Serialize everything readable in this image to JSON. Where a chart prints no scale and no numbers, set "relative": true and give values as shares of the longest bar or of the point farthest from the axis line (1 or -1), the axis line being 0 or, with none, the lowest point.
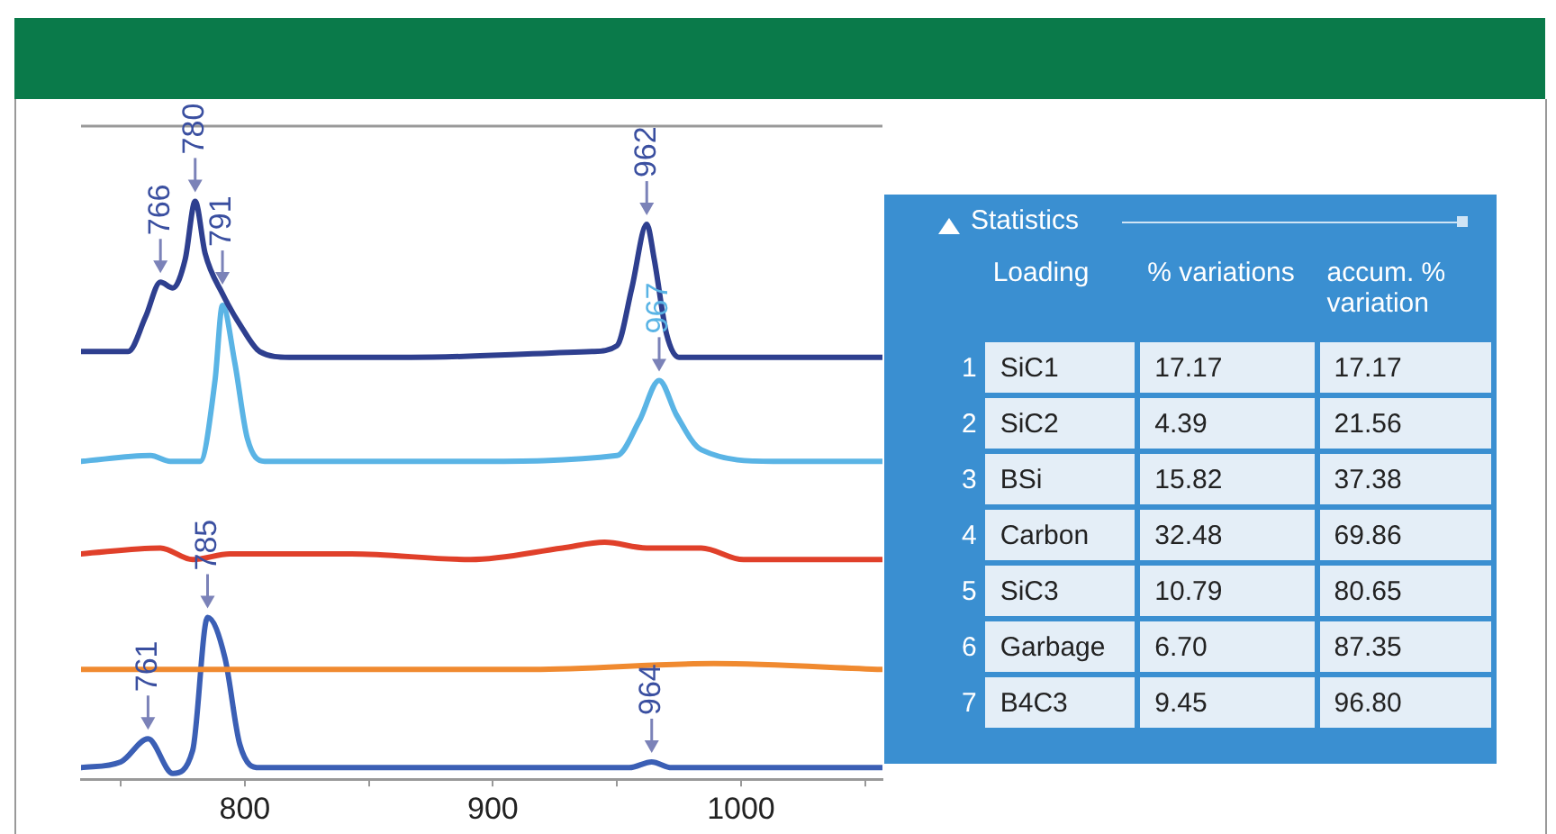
{
  "chart_data": [
    {
      "type": "line",
      "relative": true,
      "legend": false,
      "marker": "none",
      "line_style": "solid",
      "xlim": [
        734,
        1057
      ],
      "xticks": [
        {
          "value": 750,
          "label": null
        },
        800,
        {
          "value": 850,
          "label": null
        },
        900,
        {
          "value": 950,
          "label": null
        },
        1000,
        {
          "value": 1050,
          "label": null
        }
      ],
      "series": [
        {
          "color": "#2e3f8f",
          "x": [
            734,
            753,
            760,
            766,
            771,
            776,
            780,
            784,
            791,
            799,
            806,
            818,
            867,
            940,
            950,
            956,
            962,
            965,
            970,
            975,
            1057
          ],
          "values": [
            0.74,
            0.74,
            0.8,
            0.86,
            0.85,
            0.9,
            1.0,
            0.91,
            0.84,
            0.78,
            0.74,
            0.73,
            0.73,
            0.74,
            0.75,
            0.85,
            0.96,
            0.9,
            0.77,
            0.73,
            0.73
          ]
        },
        {
          "color": "#5ab4e5",
          "x": [
            734,
            762,
            770,
            782,
            788,
            791,
            796,
            801,
            808,
            891,
            950,
            959,
            967,
            974,
            984,
            1013,
            1057
          ],
          "values": [
            0.55,
            0.56,
            0.55,
            0.55,
            0.69,
            0.82,
            0.72,
            0.59,
            0.55,
            0.55,
            0.56,
            0.62,
            0.69,
            0.63,
            0.57,
            0.55,
            0.55
          ]
        },
        {
          "color": "#e0402a",
          "x": [
            734,
            766,
            779,
            794,
            843,
            891,
            928,
            945,
            962,
            984,
            1001,
            1057
          ],
          "values": [
            0.39,
            0.4,
            0.38,
            0.39,
            0.39,
            0.38,
            0.4,
            0.41,
            0.4,
            0.4,
            0.38,
            0.38
          ]
        },
        {
          "color": "#f08a30",
          "x": [
            734,
            770,
            843,
            916,
            989,
            1057
          ],
          "values": [
            0.19,
            0.19,
            0.19,
            0.19,
            0.2,
            0.19
          ]
        },
        {
          "color": "#3b5fb5",
          "x": [
            734,
            750,
            761,
            771,
            779,
            785,
            792,
            798,
            806,
            955,
            964,
            972,
            1057
          ],
          "values": [
            0.02,
            0.03,
            0.07,
            0.01,
            0.05,
            0.28,
            0.21,
            0.06,
            0.02,
            0.02,
            0.03,
            0.02,
            0.02
          ]
        }
      ],
      "annotations": [
        {
          "text": "766",
          "x": 766,
          "y": 0.86
        },
        {
          "text": "780",
          "x": 780,
          "y": 1.0
        },
        {
          "text": "791",
          "x": 791,
          "y": 0.84
        },
        {
          "text": "962",
          "x": 962,
          "y": 0.96
        },
        {
          "text": "967",
          "x": 967,
          "y": 0.69
        },
        {
          "text": "785",
          "x": 785,
          "y": 0.28
        },
        {
          "text": "761",
          "x": 761,
          "y": 0.07
        },
        {
          "text": "964",
          "x": 964,
          "y": 0.03
        }
      ]
    },
    {
      "type": "heatmap",
      "title": "Statistics",
      "categories": [
        "Loading",
        "% variations",
        "accum. % variation"
      ],
      "y_categories": [
        "1",
        "2",
        "3",
        "4",
        "5",
        "6",
        "7"
      ],
      "cells": [
        [
          null,
          17.17,
          17.17
        ],
        [
          null,
          4.39,
          21.56
        ],
        [
          null,
          15.82,
          37.38
        ],
        [
          null,
          32.48,
          69.86
        ],
        [
          null,
          10.79,
          80.65
        ],
        [
          null,
          6.7,
          87.35
        ],
        [
          null,
          9.45,
          96.8
        ]
      ],
      "cell_labels": [
        [
          "SiC1",
          "17.17",
          "17.17"
        ],
        [
          "SiC2",
          "4.39",
          "21.56"
        ],
        [
          "BSi",
          "15.82",
          "37.38"
        ],
        [
          "Carbon",
          "32.48",
          "69.86"
        ],
        [
          "SiC3",
          "10.79",
          "80.65"
        ],
        [
          "Garbage",
          "6.70",
          "87.35"
        ],
        [
          "B4C3",
          "9.45",
          "96.80"
        ]
      ]
    }
  ]
}
